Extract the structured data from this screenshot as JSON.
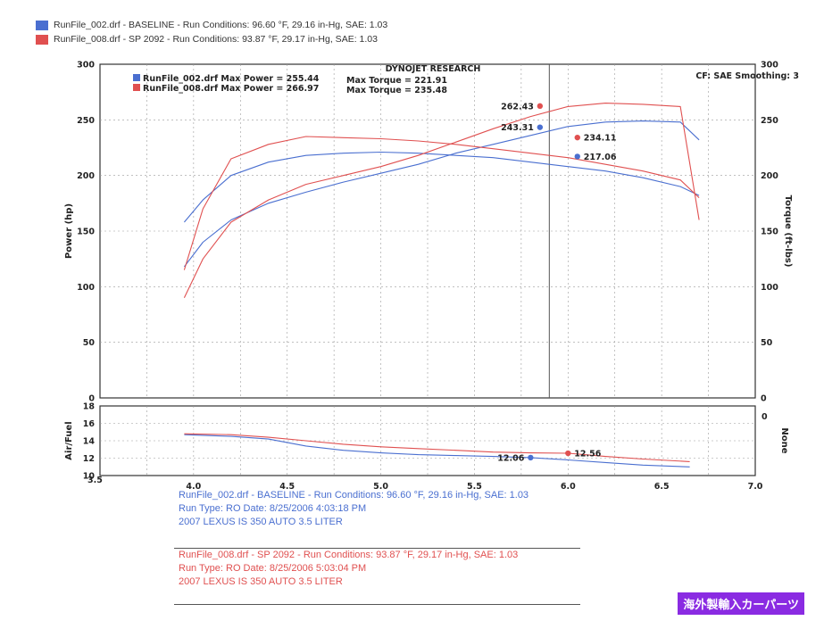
{
  "legend": [
    {
      "text": "RunFile_002.drf - BASELINE  -  Run Conditions: 96.60 °F, 29.16 in-Hg, SAE: 1.03",
      "color": "#4a6fd0"
    },
    {
      "text": "RunFile_008.drf - SP 2092  -  Run Conditions: 93.87 °F, 29.17 in-Hg, SAE: 1.03",
      "color": "#e05050"
    }
  ],
  "chart_data": [
    {
      "type": "line",
      "title": "DYNOJET RESEARCH",
      "corner_note": "CF: SAE  Smoothing: 3",
      "ylabel": "Power (hp)",
      "y2label": "Torque (ft-lbs)",
      "xlim": [
        3.5,
        7.0
      ],
      "ylim": [
        0,
        300
      ],
      "y2lim": [
        0,
        300
      ],
      "grid": true,
      "xticks": [
        "4.0",
        "4.5",
        "5.0",
        "5.5",
        "6.0",
        "6.5",
        "7.0"
      ],
      "yticks": [
        "0",
        "50",
        "100",
        "150",
        "200",
        "250",
        "300"
      ],
      "y2ticks": [
        "0",
        "50",
        "100",
        "150",
        "200",
        "250",
        "300"
      ],
      "summary": [
        {
          "power": "RunFile_002.drf Max Power = 255.44",
          "torque": "Max Torque = 221.91",
          "color": "#4a6fd0"
        },
        {
          "power": "RunFile_008.drf Max Power = 266.97",
          "torque": "Max Torque = 235.48",
          "color": "#e05050"
        }
      ],
      "series": [
        {
          "name": "RunFile_002.drf",
          "kind": "power",
          "color": "#4a6fd0",
          "x": [
            3.95,
            4.05,
            4.2,
            4.4,
            4.6,
            4.8,
            5.0,
            5.2,
            5.4,
            5.6,
            5.8,
            6.0,
            6.2,
            6.4,
            6.6,
            6.7
          ],
          "y": [
            118,
            140,
            160,
            175,
            185,
            194,
            202,
            210,
            220,
            228,
            236,
            244,
            248,
            249,
            248,
            232
          ]
        },
        {
          "name": "RunFile_002.drf",
          "kind": "torque",
          "color": "#4a6fd0",
          "x": [
            3.95,
            4.05,
            4.2,
            4.4,
            4.6,
            4.8,
            5.0,
            5.2,
            5.4,
            5.6,
            5.8,
            6.0,
            6.2,
            6.4,
            6.6,
            6.7
          ],
          "y": [
            158,
            178,
            200,
            212,
            218,
            220,
            221,
            220,
            218,
            216,
            212,
            208,
            204,
            198,
            190,
            182
          ]
        },
        {
          "name": "RunFile_008.drf",
          "kind": "power",
          "color": "#e05050",
          "x": [
            3.95,
            4.05,
            4.2,
            4.4,
            4.6,
            4.8,
            5.0,
            5.2,
            5.4,
            5.6,
            5.8,
            6.0,
            6.2,
            6.4,
            6.6,
            6.7
          ],
          "y": [
            90,
            125,
            158,
            178,
            192,
            200,
            208,
            218,
            230,
            242,
            253,
            262,
            265,
            264,
            262,
            160
          ]
        },
        {
          "name": "RunFile_008.drf",
          "kind": "torque",
          "color": "#e05050",
          "x": [
            3.95,
            4.05,
            4.2,
            4.4,
            4.6,
            4.8,
            5.0,
            5.2,
            5.4,
            5.6,
            5.8,
            6.0,
            6.2,
            6.4,
            6.6,
            6.7
          ],
          "y": [
            115,
            170,
            215,
            228,
            235,
            234,
            233,
            231,
            228,
            224,
            220,
            216,
            210,
            204,
            196,
            180
          ]
        }
      ],
      "annotations": [
        {
          "x": 5.85,
          "y": 262.43,
          "label": "262.43",
          "color": "#e05050",
          "side": "left"
        },
        {
          "x": 5.85,
          "y": 243.31,
          "label": "243.31",
          "color": "#4a6fd0",
          "side": "left"
        },
        {
          "x": 6.05,
          "y": 234.11,
          "label": "234.11",
          "color": "#e05050",
          "side": "right"
        },
        {
          "x": 6.05,
          "y": 217.06,
          "label": "217.06",
          "color": "#4a6fd0",
          "side": "right"
        }
      ],
      "cursor_x": 5.9
    },
    {
      "type": "line",
      "ylabel": "Air/Fuel",
      "y2label": "None",
      "xlim": [
        3.5,
        7.0
      ],
      "ylim": [
        10,
        18
      ],
      "grid": true,
      "yticks": [
        "10",
        "12",
        "14",
        "16",
        "18"
      ],
      "series": [
        {
          "name": "RunFile_002.drf",
          "kind": "afr",
          "color": "#4a6fd0",
          "x": [
            3.95,
            4.2,
            4.4,
            4.6,
            4.8,
            5.0,
            5.2,
            5.4,
            5.6,
            5.8,
            6.0,
            6.2,
            6.4,
            6.65
          ],
          "y": [
            14.7,
            14.5,
            14.2,
            13.4,
            12.9,
            12.6,
            12.4,
            12.3,
            12.2,
            12.06,
            11.8,
            11.5,
            11.2,
            11.0
          ]
        },
        {
          "name": "RunFile_008.drf",
          "kind": "afr",
          "color": "#e05050",
          "x": [
            3.95,
            4.2,
            4.4,
            4.6,
            4.8,
            5.0,
            5.2,
            5.4,
            5.6,
            5.8,
            6.0,
            6.2,
            6.4,
            6.65
          ],
          "y": [
            14.8,
            14.7,
            14.4,
            14.0,
            13.6,
            13.3,
            13.1,
            12.9,
            12.7,
            12.6,
            12.56,
            12.2,
            11.9,
            11.6
          ]
        }
      ],
      "annotations": [
        {
          "x": 5.8,
          "y": 12.06,
          "label": "12.06",
          "color": "#4a6fd0",
          "side": "left"
        },
        {
          "x": 6.0,
          "y": 12.56,
          "label": "12.56",
          "color": "#e05050",
          "side": "right"
        }
      ]
    }
  ],
  "info": [
    {
      "lines": [
        "RunFile_002.drf - BASELINE  -  Run Conditions: 96.60 °F, 29.16 in-Hg, SAE: 1.03",
        "Run Type: RO  Date: 8/25/2006 4:03:18 PM",
        "2007 LEXUS IS 350 AUTO 3.5 LITER"
      ],
      "color": "#4a6fd0"
    },
    {
      "lines": [
        "RunFile_008.drf - SP 2092  -  Run Conditions: 93.87 °F, 29.17 in-Hg, SAE: 1.03",
        "Run Type: RO  Date: 8/25/2006 5:03:04 PM",
        "2007 LEXUS IS 350 AUTO 3.5 LITER"
      ],
      "color": "#e05050"
    }
  ],
  "badge": "海外製輸入カーパーツ"
}
